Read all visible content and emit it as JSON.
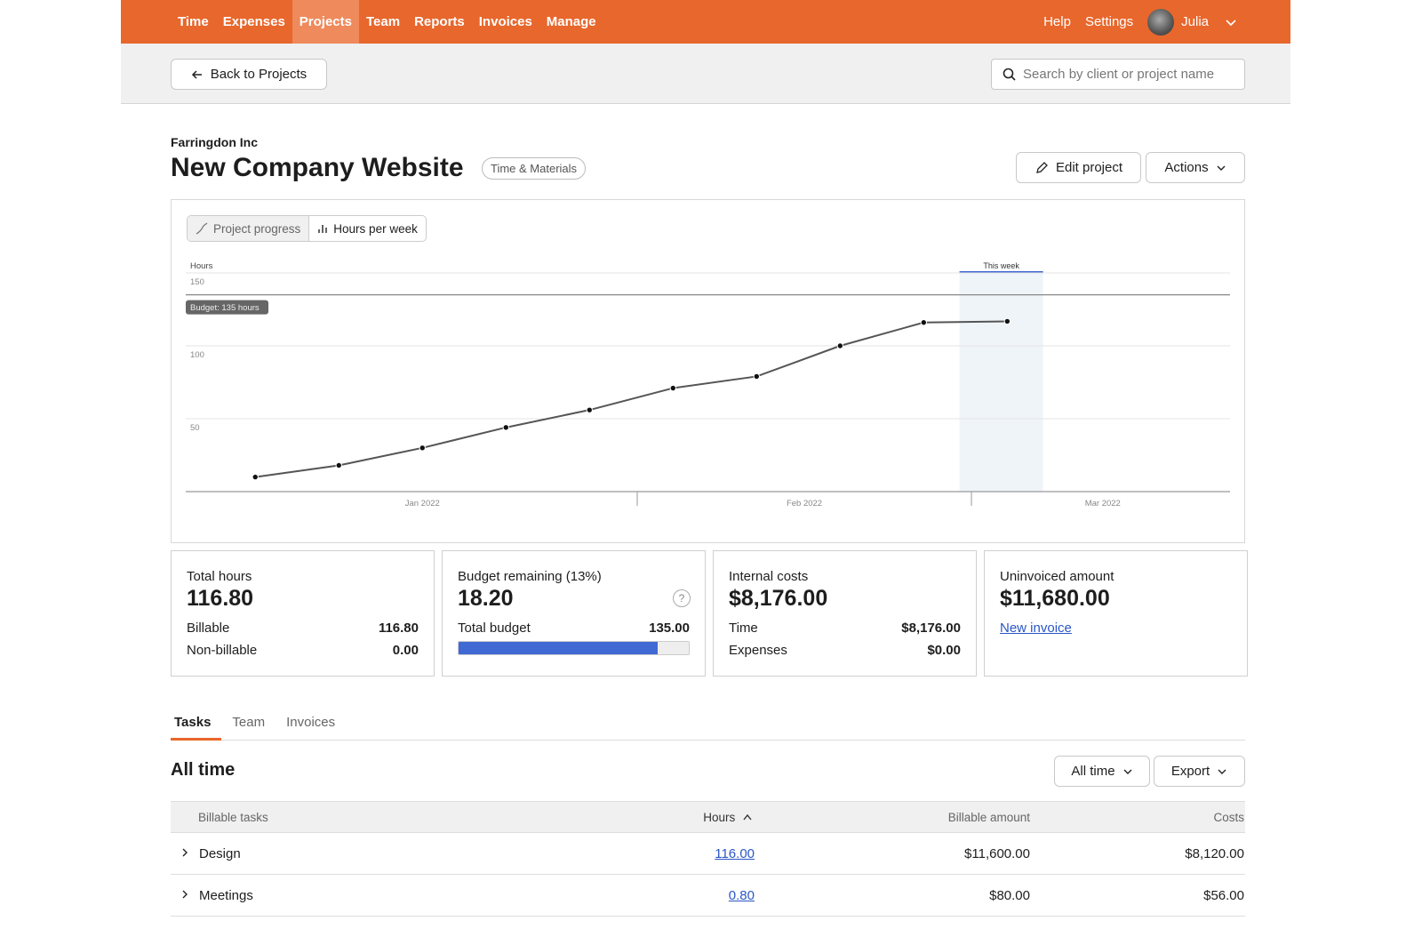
{
  "nav": {
    "items": [
      "Time",
      "Expenses",
      "Projects",
      "Team",
      "Reports",
      "Invoices",
      "Manage"
    ],
    "active": "Projects",
    "help": "Help",
    "settings": "Settings",
    "user": "Julia"
  },
  "subbar": {
    "back_label": "Back to Projects",
    "search_placeholder": "Search by client or project name"
  },
  "project": {
    "client": "Farringdon Inc",
    "name": "New Company Website",
    "type": "Time & Materials",
    "edit_label": "Edit project",
    "actions_label": "Actions"
  },
  "chart_toggle": {
    "progress": "Project progress",
    "weekly": "Hours per week",
    "active": "progress"
  },
  "chart_data": {
    "type": "line",
    "ylabel": "Hours",
    "ylim": [
      0,
      150
    ],
    "yticks": [
      50,
      100,
      150
    ],
    "budget": 135,
    "budget_label": "Budget: 135 hours",
    "this_week_label": "This week",
    "this_week": [
      "2022-02-28",
      "2022-03-06"
    ],
    "month_labels": [
      "Jan 2022",
      "Feb 2022",
      "Mar 2022"
    ],
    "x": [
      "2021-12-31",
      "2022-01-07",
      "2022-01-14",
      "2022-01-21",
      "2022-01-28",
      "2022-02-04",
      "2022-02-11",
      "2022-02-18",
      "2022-02-25",
      "2022-03-04"
    ],
    "values": [
      10,
      18,
      30,
      44,
      56,
      71,
      79,
      100,
      116,
      116.8
    ],
    "grid": true,
    "line_color": "#555555",
    "highlight_color": "#4169d4"
  },
  "cards": {
    "total": {
      "label": "Total hours",
      "value": "116.80",
      "billable_label": "Billable",
      "billable": "116.80",
      "nonbillable_label": "Non-billable",
      "nonbillable": "0.00"
    },
    "budget": {
      "label": "Budget remaining (13%)",
      "value": "18.20",
      "total_label": "Total budget",
      "total": "135.00",
      "used_fraction": 0.865
    },
    "costs": {
      "label": "Internal costs",
      "value": "$8,176.00",
      "time_label": "Time",
      "time": "$8,176.00",
      "expenses_label": "Expenses",
      "expenses": "$0.00"
    },
    "uninvoiced": {
      "label": "Uninvoiced amount",
      "value": "$11,680.00",
      "link": "New invoice"
    }
  },
  "tabs": [
    "Tasks",
    "Team",
    "Invoices"
  ],
  "section": {
    "title": "All time",
    "range_label": "All time",
    "export_label": "Export"
  },
  "table": {
    "headers": [
      "Billable tasks",
      "Hours",
      "Billable amount",
      "Costs"
    ],
    "rows": [
      {
        "task": "Design",
        "hours": "116.00",
        "amount": "$11,600.00",
        "costs": "$8,120.00"
      },
      {
        "task": "Meetings",
        "hours": "0.80",
        "amount": "$80.00",
        "costs": "$56.00"
      }
    ]
  },
  "colors": {
    "brand": "#e8672c",
    "accent": "#4169d4"
  }
}
